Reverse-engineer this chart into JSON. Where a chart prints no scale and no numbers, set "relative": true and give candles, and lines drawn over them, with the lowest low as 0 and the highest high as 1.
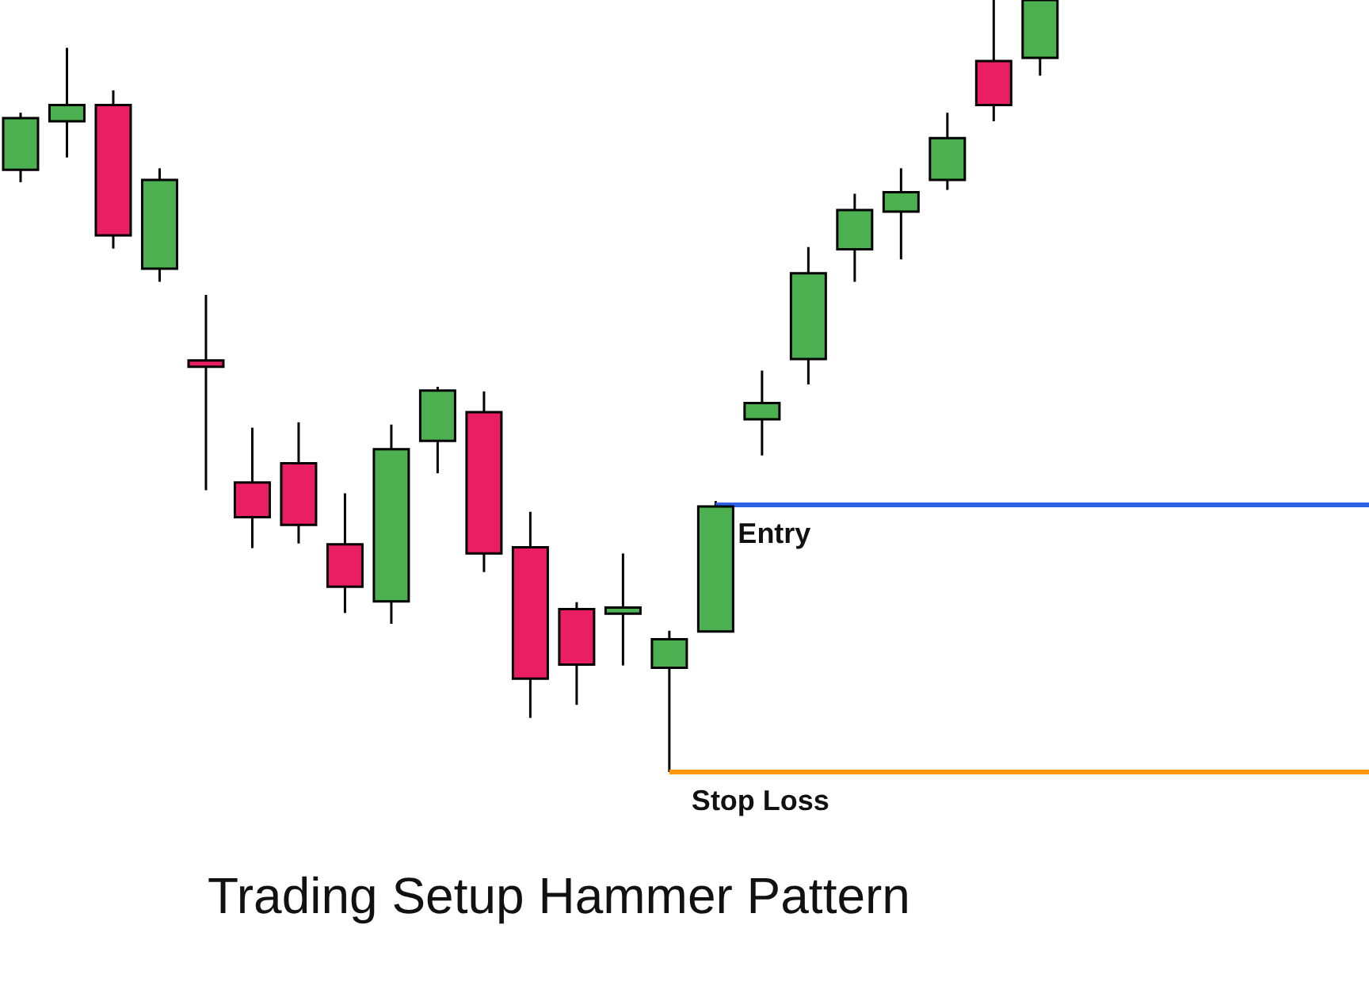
{
  "chart_data": {
    "type": "candlestick",
    "title": "Trading Setup Hammer Pattern",
    "relative": true,
    "categories": [
      null,
      null,
      null,
      null,
      null,
      null,
      null,
      null,
      null,
      null,
      null,
      null,
      null,
      null,
      null,
      null,
      null,
      null,
      null,
      null,
      null,
      null,
      null
    ],
    "ohlc": [
      [
        0.78,
        0.854,
        0.764,
        0.847
      ],
      [
        0.843,
        0.938,
        0.796,
        0.864
      ],
      [
        0.864,
        0.883,
        0.678,
        0.695
      ],
      [
        0.652,
        0.782,
        0.635,
        0.767
      ],
      [
        0.533,
        0.618,
        0.365,
        0.525
      ],
      [
        0.375,
        0.446,
        0.29,
        0.33
      ],
      [
        0.4,
        0.453,
        0.296,
        0.32
      ],
      [
        0.295,
        0.361,
        0.206,
        0.24
      ],
      [
        0.221,
        0.45,
        0.192,
        0.418
      ],
      [
        0.429,
        0.499,
        0.387,
        0.494
      ],
      [
        0.466,
        0.493,
        0.259,
        0.283
      ],
      [
        0.291,
        0.337,
        0.07,
        0.121
      ],
      [
        0.211,
        0.22,
        0.087,
        0.139
      ],
      [
        0.205,
        0.283,
        0.138,
        0.213
      ],
      [
        0.135,
        0.183,
        0.0,
        0.172
      ],
      [
        0.182,
        0.351,
        0.182,
        0.344
      ],
      [
        0.457,
        0.52,
        0.41,
        0.478
      ],
      [
        0.535,
        0.68,
        0.502,
        0.646
      ],
      [
        0.677,
        0.749,
        0.635,
        0.728
      ],
      [
        0.726,
        0.782,
        0.664,
        0.751
      ],
      [
        0.767,
        0.854,
        0.754,
        0.821
      ],
      [
        0.921,
        1.0,
        0.843,
        0.864
      ],
      [
        0.925,
        1.0,
        0.902,
        1.0
      ]
    ],
    "colors": [
      "#4caf50",
      "#4caf50",
      "#e91e63",
      "#4caf50",
      "#e91e63",
      "#e91e63",
      "#e91e63",
      "#e91e63",
      "#4caf50",
      "#4caf50",
      "#e91e63",
      "#e91e63",
      "#e91e63",
      "#4caf50",
      "#4caf50",
      "#4caf50",
      "#4caf50",
      "#4caf50",
      "#4caf50",
      "#4caf50",
      "#4caf50",
      "#e91e63",
      "#4caf50"
    ],
    "ref_lines": [
      {
        "axis": "y",
        "value": 0.346,
        "label": "Entry",
        "color": "#2e62e6"
      },
      {
        "axis": "y",
        "value": 0,
        "label": "Stop Loss",
        "color": "#ff9800"
      }
    ]
  }
}
